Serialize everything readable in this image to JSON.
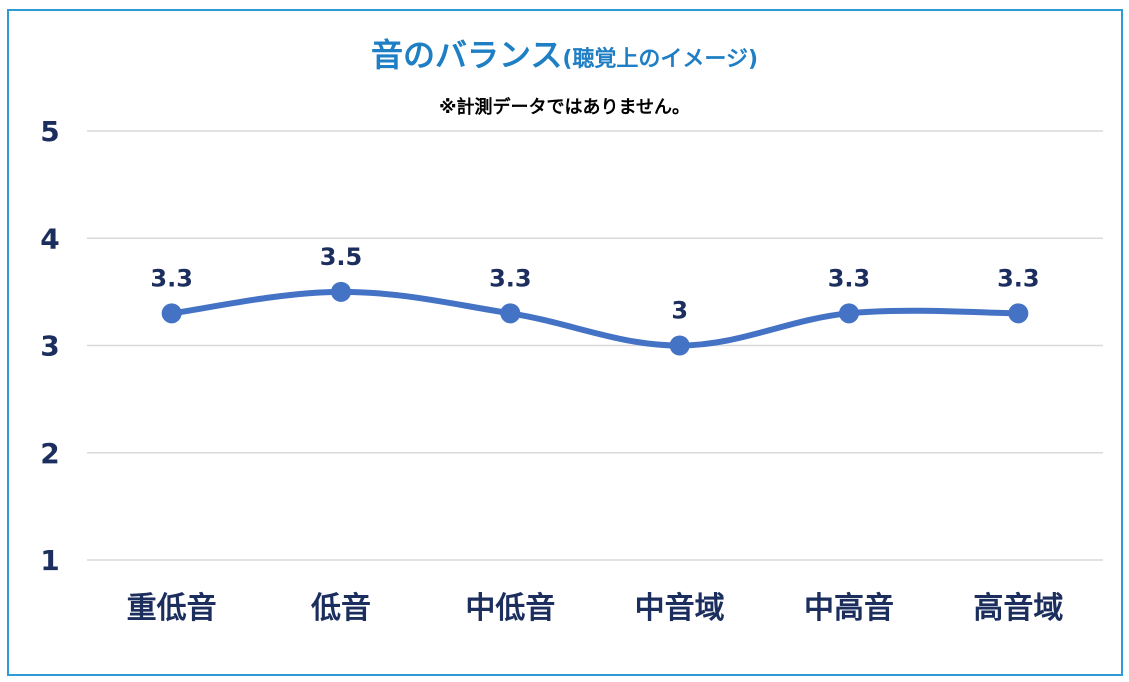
{
  "chart_data": {
    "type": "line",
    "title": "音のバランス",
    "title_suffix": "(聴覚上のイメージ)",
    "subtitle": "※計測データではありません。",
    "categories": [
      "重低音",
      "低音",
      "中低音",
      "中音域",
      "中高音",
      "高音域"
    ],
    "values": [
      3.3,
      3.5,
      3.3,
      3,
      3.3,
      3.3
    ],
    "data_labels": [
      "3.3",
      "3.5",
      "3.3",
      "3",
      "3.3",
      "3.3"
    ],
    "ylim": [
      1,
      5
    ],
    "yticks": [
      "1",
      "2",
      "3",
      "4",
      "5"
    ],
    "grid": true,
    "smooth": true,
    "colors": {
      "line": "#4472c4",
      "title": "#1f7fc4",
      "border": "#2e9bd6",
      "grid": "#d9d9d9",
      "labels": "#1b2e5e"
    }
  }
}
